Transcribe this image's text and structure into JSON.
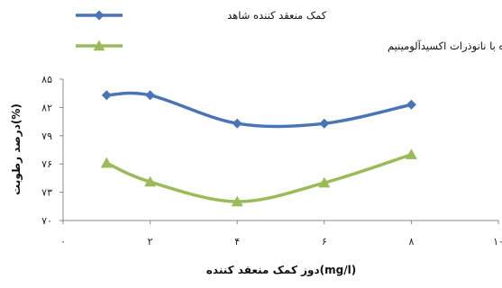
{
  "chart_data": {
    "type": "line",
    "title": "",
    "xlabel": "دوز کمک منعقد کننده(mg/l)",
    "ylabel": "درصد رطوبت(%)",
    "xlim": [
      0,
      10
    ],
    "ylim": [
      70,
      85
    ],
    "x_ticks": [
      0,
      2,
      4,
      6,
      8,
      10
    ],
    "x_tick_labels": [
      "۰",
      "۲",
      "۴",
      "۶",
      "۸",
      "۱۰"
    ],
    "y_ticks": [
      70,
      73,
      76,
      79,
      82,
      85
    ],
    "y_tick_labels": [
      "۷۰",
      "۷۳",
      "۷۶",
      "۷۹",
      "۸۲",
      "۸۵"
    ],
    "grid": false,
    "legend_position": "top",
    "series": [
      {
        "name": "کمک منعقد کننده شاهد",
        "color": "#4A74B5",
        "marker": "diamond",
        "x": [
          1,
          2,
          4,
          6,
          8
        ],
        "y": [
          83.3,
          83.3,
          80.3,
          80.3,
          82.3
        ]
      },
      {
        "name": "کمک منعقد کننده فعال سازی شده با نانوذرات اکسیدآلومینیم",
        "color": "#9BBB59",
        "marker": "triangle",
        "x": [
          1,
          2,
          4,
          6,
          8
        ],
        "y": [
          76.1,
          74.1,
          72.0,
          74.0,
          77.0
        ]
      }
    ]
  }
}
